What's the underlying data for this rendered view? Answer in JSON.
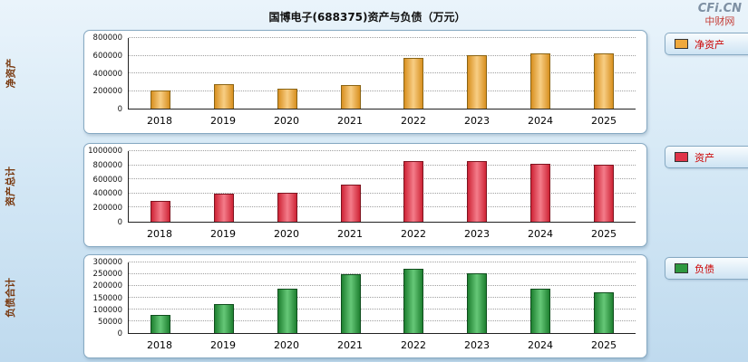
{
  "header": {
    "title": "国博电子(688375)资产与负债（万元）",
    "watermark_top": "CFi.CN",
    "watermark_bottom": "中财网"
  },
  "colors": {
    "legend_text": "#cc0000",
    "axis_title": "#7a3b12",
    "panel_border": "#86a9c2"
  },
  "chart_data": [
    {
      "type": "bar",
      "title": "净资产",
      "ylabel": "净资产",
      "xlabel": "",
      "legend": "净资产",
      "legend_position": "right",
      "grid": true,
      "categories": [
        "2018",
        "2019",
        "2020",
        "2021",
        "2022",
        "2023",
        "2024",
        "2025"
      ],
      "values": [
        190000,
        265000,
        215000,
        260000,
        565000,
        595000,
        620000,
        620000
      ],
      "ylim": [
        0,
        800000
      ],
      "yticks": [
        0,
        200000,
        400000,
        600000,
        800000
      ],
      "bar_color": "#F0A93C",
      "bar_color_light": "#F8CE84",
      "bar_color_dark": "#D89020",
      "bar_border": "#8a6414"
    },
    {
      "type": "bar",
      "title": "资产总计",
      "ylabel": "资产总计",
      "xlabel": "",
      "legend": "资产",
      "legend_position": "right",
      "grid": true,
      "categories": [
        "2018",
        "2019",
        "2020",
        "2021",
        "2022",
        "2023",
        "2024",
        "2025"
      ],
      "values": [
        280000,
        380000,
        400000,
        510000,
        845000,
        850000,
        805000,
        795000
      ],
      "ylim": [
        0,
        1000000
      ],
      "yticks": [
        0,
        200000,
        400000,
        600000,
        800000,
        1000000
      ],
      "bar_color": "#E03449",
      "bar_color_light": "#F47C8A",
      "bar_color_dark": "#CE2436",
      "bar_border": "#7e1420"
    },
    {
      "type": "bar",
      "title": "负债合计",
      "ylabel": "负债合计",
      "xlabel": "",
      "legend": "负债",
      "legend_position": "right",
      "grid": true,
      "categories": [
        "2018",
        "2019",
        "2020",
        "2021",
        "2022",
        "2023",
        "2024",
        "2025"
      ],
      "values": [
        75000,
        120000,
        185000,
        245000,
        270000,
        250000,
        185000,
        170000
      ],
      "ylim": [
        0,
        300000
      ],
      "yticks": [
        0,
        50000,
        100000,
        150000,
        200000,
        250000,
        300000
      ],
      "bar_color": "#2E9940",
      "bar_color_light": "#66C878",
      "bar_color_dark": "#1E8030",
      "bar_border": "#0f4d1d"
    }
  ]
}
